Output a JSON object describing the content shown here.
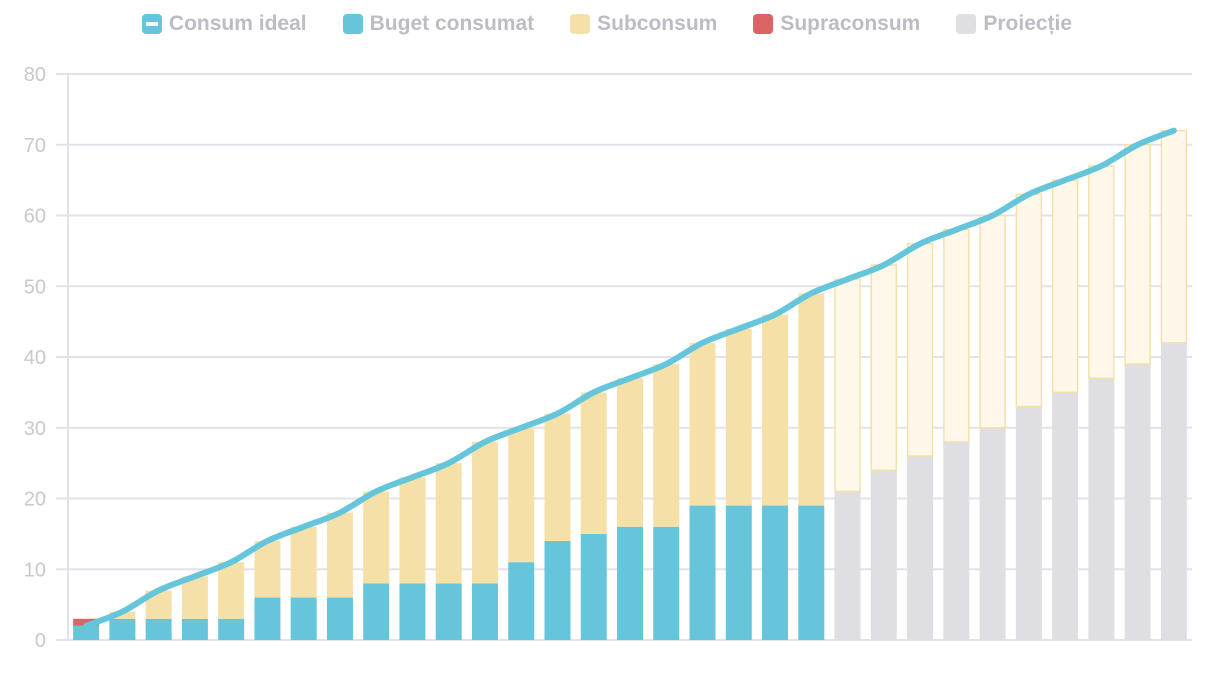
{
  "chart_data": {
    "type": "bar",
    "stacked": true,
    "legend_position": "top",
    "grid": true,
    "ylim": [
      0,
      80
    ],
    "yticks": [
      "0",
      "10",
      "20",
      "30",
      "40",
      "50",
      "60",
      "70",
      "80"
    ],
    "legend": [
      {
        "name": "Consum ideal",
        "color": "#65c5da",
        "kind": "line"
      },
      {
        "name": "Buget consumat",
        "color": "#65c5da",
        "kind": "bar"
      },
      {
        "name": "Subconsum",
        "color": "#f5e1a8",
        "kind": "bar"
      },
      {
        "name": "Supraconsum",
        "color": "#d96464",
        "kind": "bar"
      },
      {
        "name": "Proiecție",
        "color": "#dfdee3",
        "kind": "bar"
      }
    ],
    "ideal": [
      2,
      4,
      7,
      9,
      11,
      14,
      16,
      18,
      21,
      23,
      25,
      28,
      30,
      32,
      35,
      37,
      39,
      42,
      44,
      46,
      49,
      51,
      53,
      56,
      58,
      60,
      63,
      65,
      67,
      70,
      72
    ],
    "consumed": [
      3,
      3,
      3,
      3,
      3,
      6,
      6,
      6,
      8,
      8,
      8,
      8,
      11,
      14,
      15,
      16,
      16,
      19,
      19,
      19,
      19
    ],
    "projection": [
      21,
      24,
      26,
      28,
      30,
      33,
      35,
      37,
      39,
      42
    ]
  }
}
